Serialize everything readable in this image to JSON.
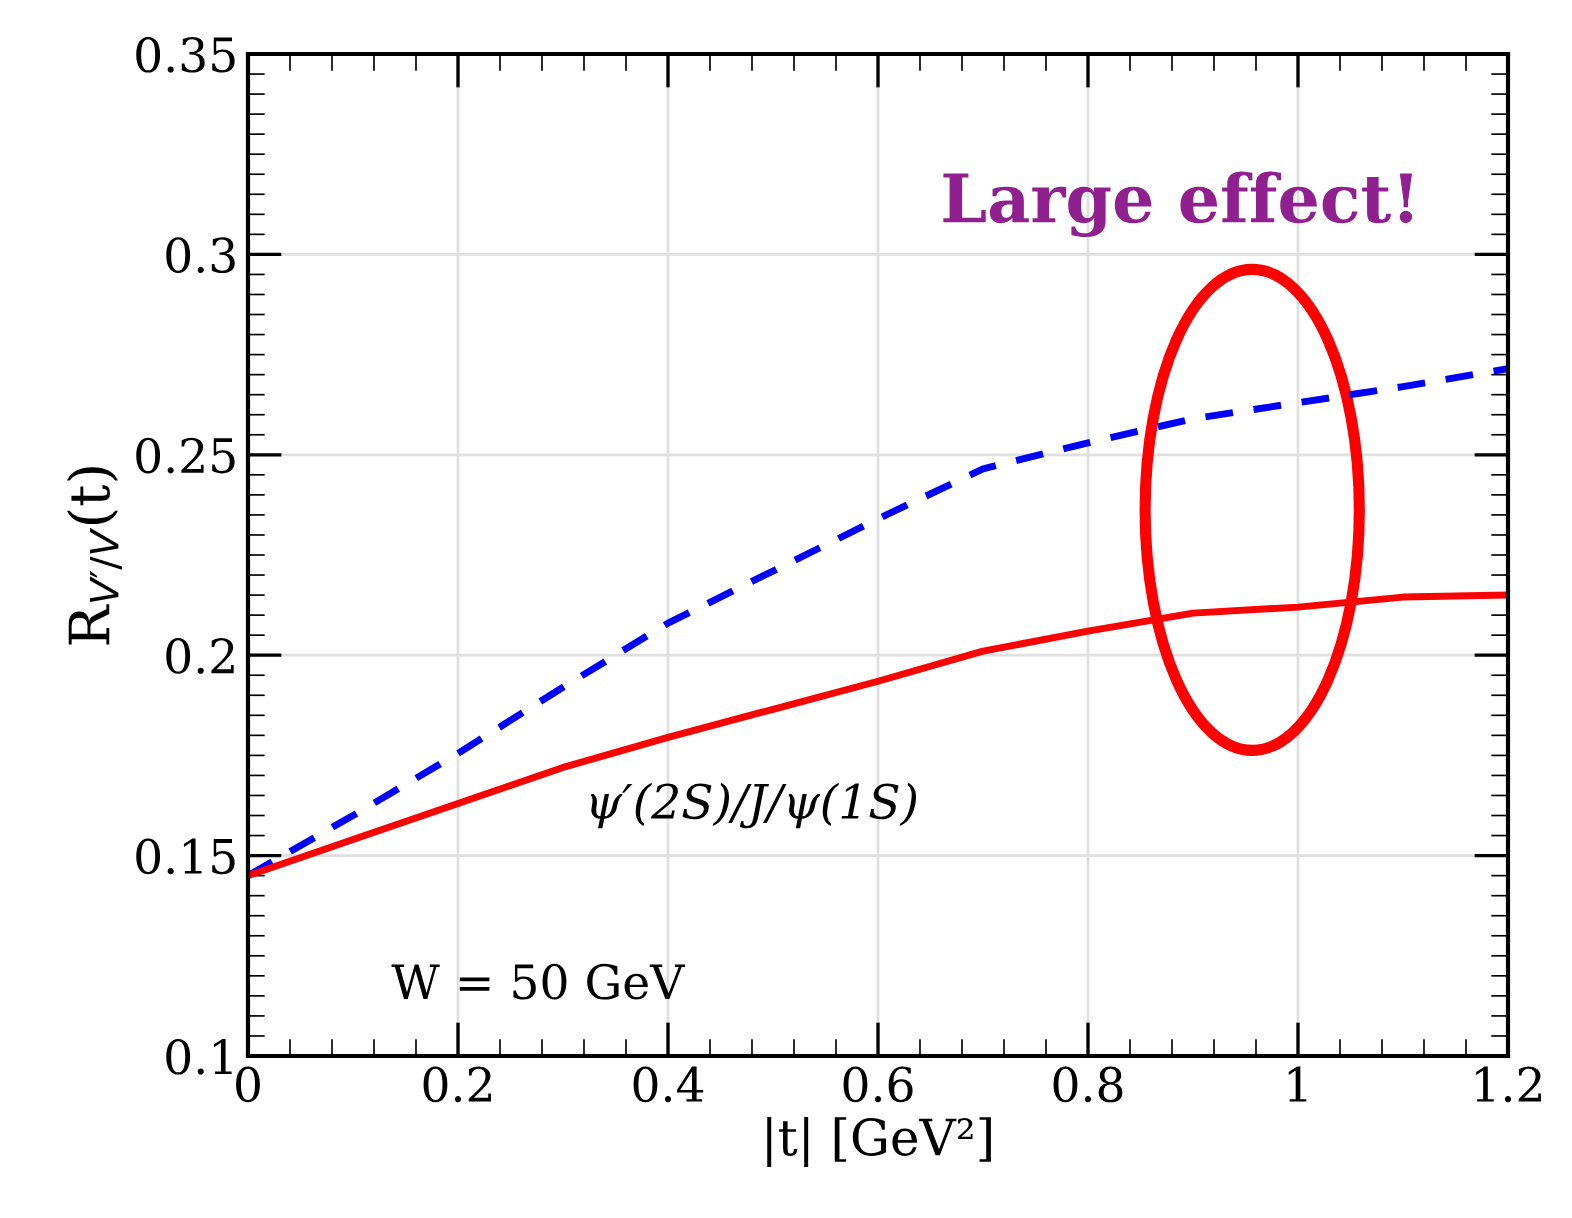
{
  "chart_data": {
    "type": "line",
    "xlabel": "|t| [GeV²]",
    "ylabel": "R$_{V′/V}$(t)",
    "x": [
      0,
      0.1,
      0.2,
      0.3,
      0.4,
      0.5,
      0.6,
      0.7,
      0.8,
      0.9,
      1.0,
      1.1,
      1.2
    ],
    "series": [
      {
        "color": "#0000ff",
        "line_style": "dashed",
        "values": [
          0.145,
          0.16,
          0.1755,
          0.192,
          0.208,
          0.221,
          0.234,
          0.2465,
          0.253,
          0.259,
          0.263,
          0.267,
          0.2715
        ]
      },
      {
        "color": "#ff0000",
        "line_style": "solid",
        "values": [
          0.145,
          0.154,
          0.163,
          0.172,
          0.1795,
          0.1865,
          0.1935,
          0.201,
          0.206,
          0.2105,
          0.212,
          0.2145,
          0.215
        ]
      }
    ],
    "annotations": [
      "Large effect!",
      "ψ′(2S)/J/ψ(1S)",
      "W = 50 GeV"
    ],
    "xlim": [
      0,
      1.2
    ],
    "xticks": [
      0,
      0.2,
      0.4,
      0.6,
      0.8,
      1,
      1.2
    ],
    "ylim": [
      0.1,
      0.35
    ],
    "yticks": [
      0.1,
      0.15,
      0.2,
      0.25,
      0.3,
      0.35
    ],
    "grid": true
  }
}
